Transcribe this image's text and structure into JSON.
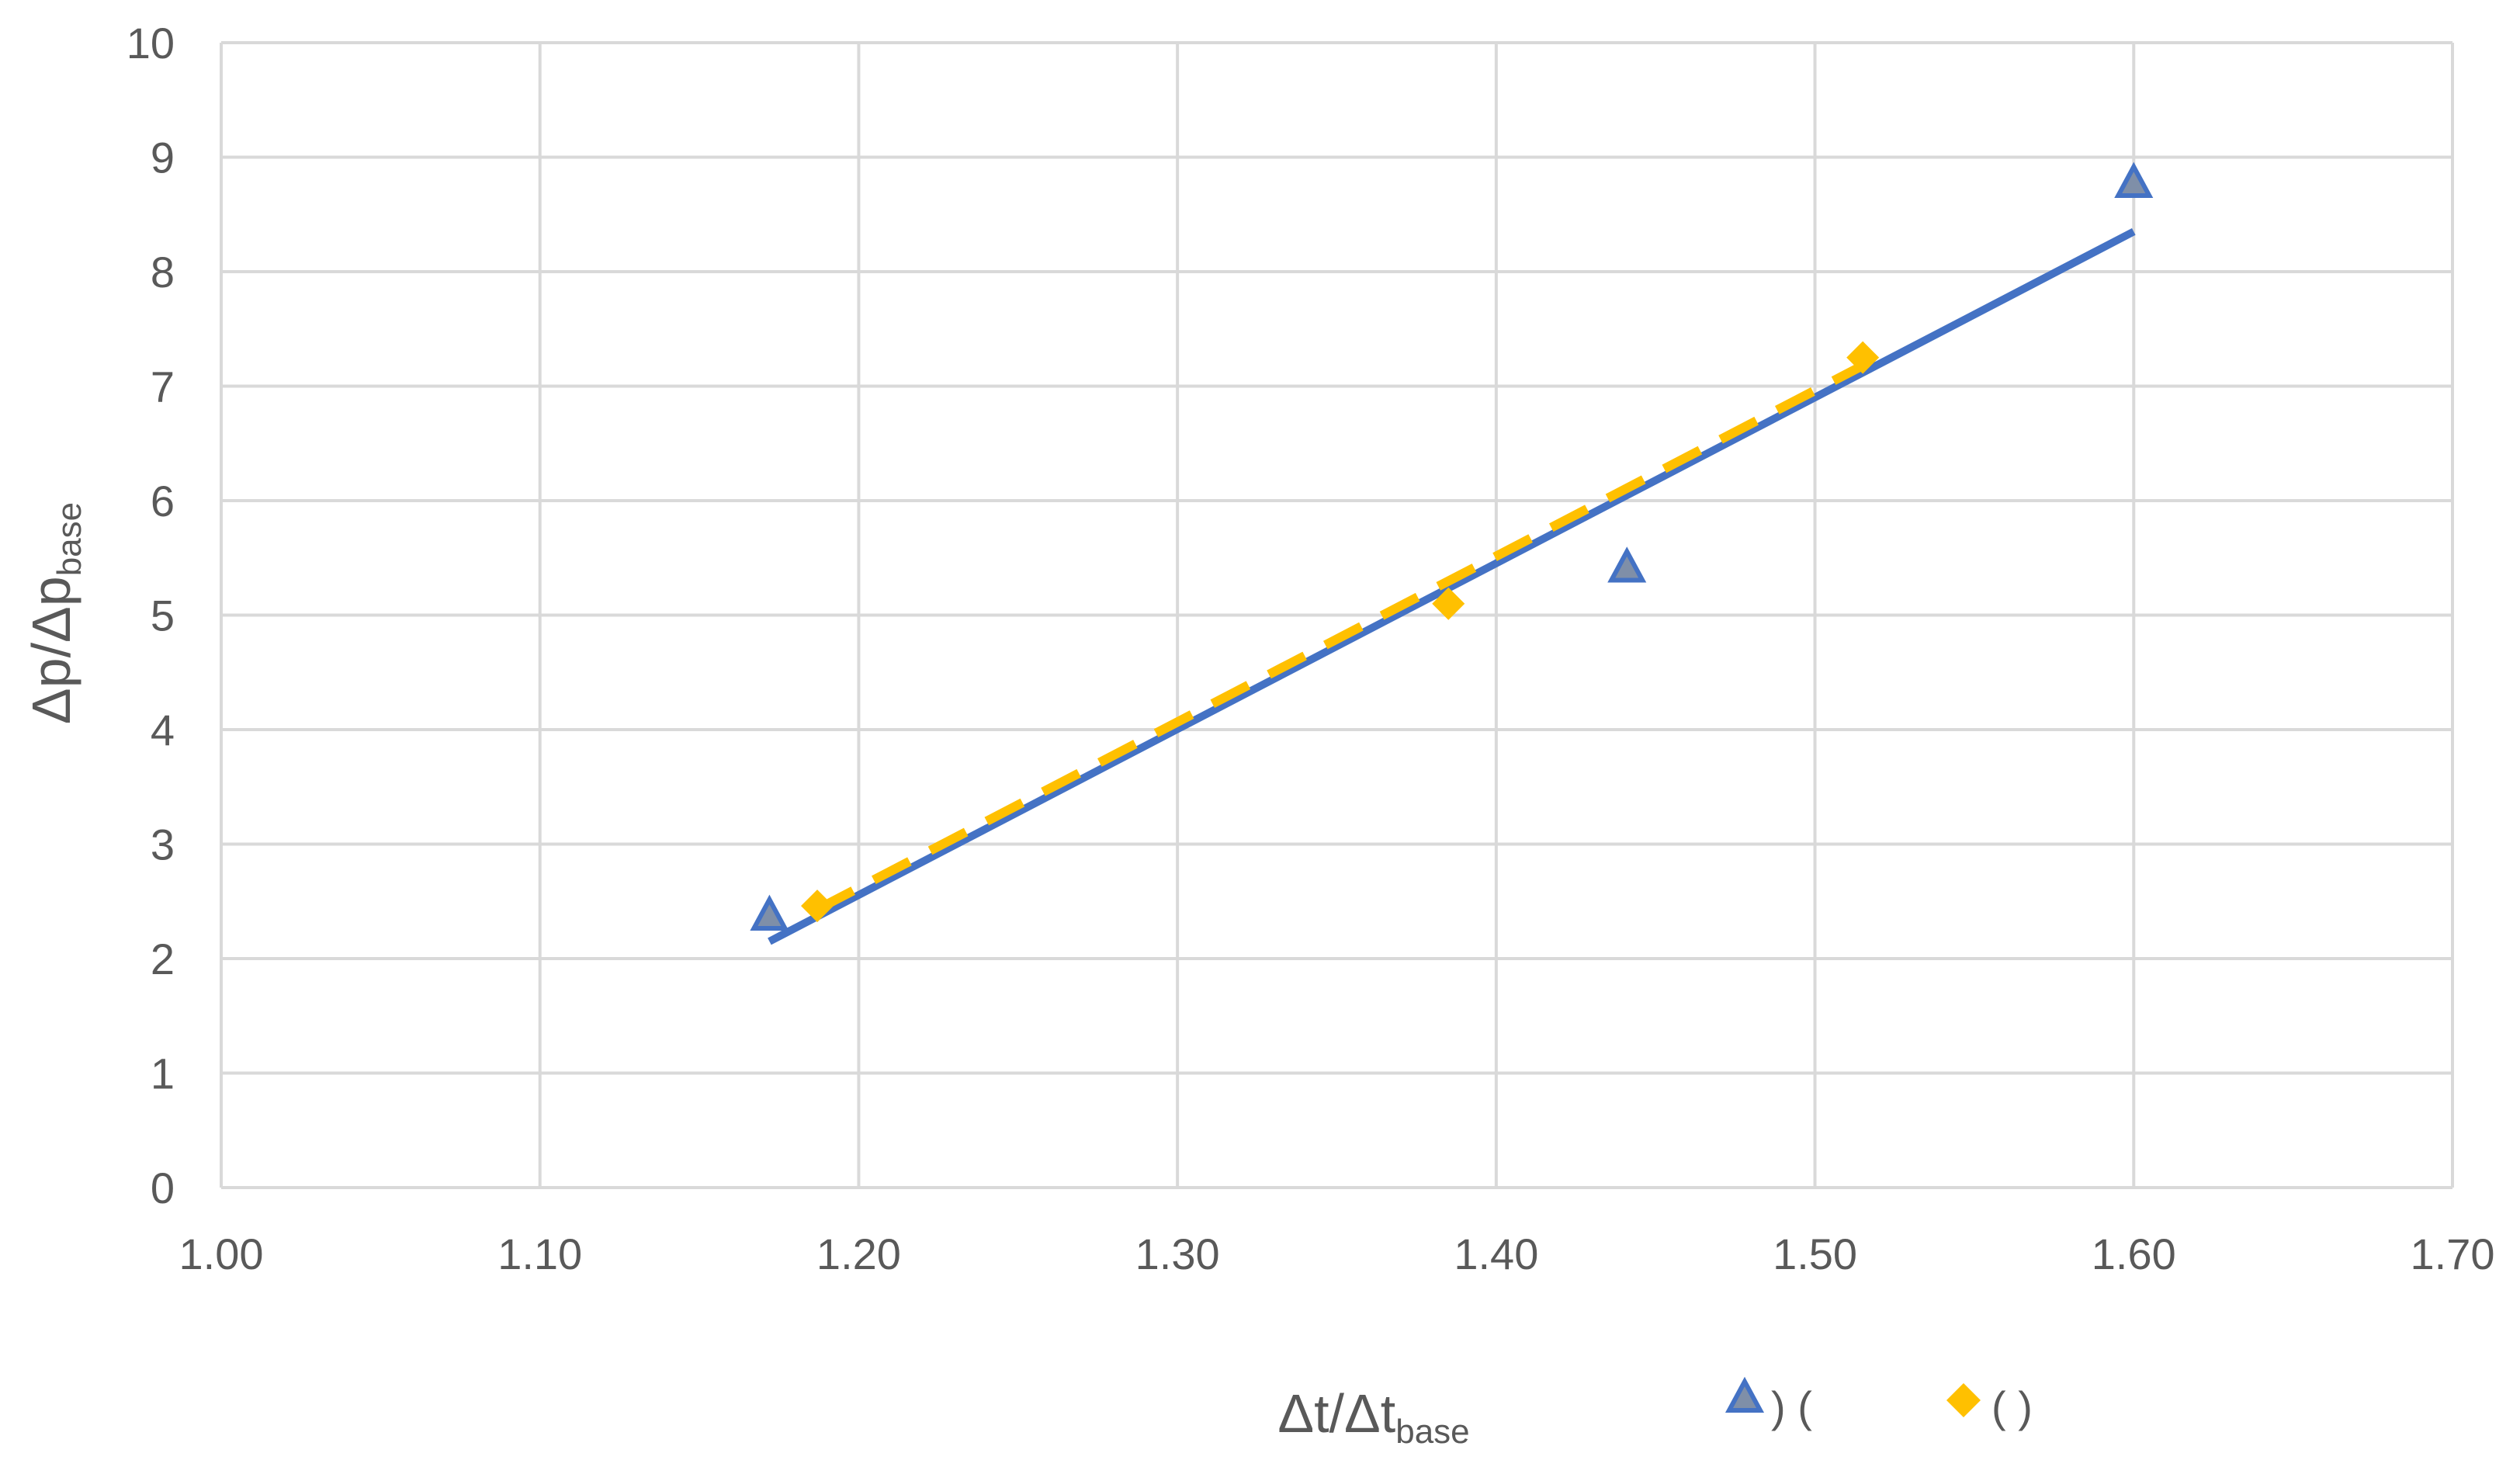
{
  "chart_data": {
    "type": "scatter",
    "title": "",
    "xlabel": {
      "main": "Δt/Δt",
      "sub": "base"
    },
    "ylabel": {
      "main": "Δp/Δp",
      "sub": "base"
    },
    "xlim": [
      1.0,
      1.7
    ],
    "ylim": [
      0,
      10
    ],
    "x_ticks": [
      "1.00",
      "1.10",
      "1.20",
      "1.30",
      "1.40",
      "1.50",
      "1.60",
      "1.70"
    ],
    "y_ticks": [
      "0",
      "1",
      "2",
      "3",
      "4",
      "5",
      "6",
      "7",
      "8",
      "9",
      "10"
    ],
    "grid": true,
    "legend_position": "bottom-right",
    "series": [
      {
        "name": ") (",
        "marker": "triangle",
        "color": "#4472C4",
        "marker_fill": "#7F8FA8",
        "points": [
          [
            1.172,
            2.38
          ],
          [
            1.441,
            5.42
          ],
          [
            1.6,
            8.78
          ]
        ],
        "trendline": {
          "style": "solid",
          "color": "#4472C4",
          "x": [
            1.172,
            1.6
          ],
          "y": [
            2.15,
            8.35
          ]
        }
      },
      {
        "name": "( )",
        "marker": "diamond",
        "color": "#FFC000",
        "points": [
          [
            1.187,
            2.46
          ],
          [
            1.385,
            5.1
          ],
          [
            1.515,
            7.25
          ]
        ],
        "trendline": {
          "style": "dashed",
          "color": "#FFC000",
          "x": [
            1.187,
            1.515
          ],
          "y": [
            2.43,
            7.18
          ]
        }
      }
    ]
  }
}
